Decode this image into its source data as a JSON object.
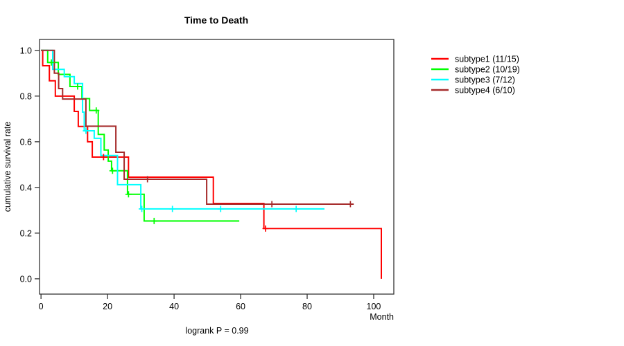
{
  "chart_data": {
    "type": "line",
    "subtype_kind": "kaplan-meier-step",
    "title": "Time to Death",
    "xlabel": "Month",
    "ylabel": "cumulative survival rate",
    "annotation": "logrank P = 0.99",
    "grid": false,
    "legend_position": "right-outside",
    "xlim": [
      -0.45,
      106.05
    ],
    "ylim": [
      -0.067,
      1.048
    ],
    "x_ticks": [
      0,
      20,
      40,
      60,
      80,
      100
    ],
    "y_ticks": [
      {
        "value": 0.0,
        "label": "0.0"
      },
      {
        "value": 0.2,
        "label": "0.2"
      },
      {
        "value": 0.4,
        "label": "0.4"
      },
      {
        "value": 0.6,
        "label": "0.6"
      },
      {
        "value": 0.8,
        "label": "0.8"
      },
      {
        "value": 1.0,
        "label": "1.0"
      }
    ],
    "axis_color": "#333333",
    "series": [
      {
        "name": "subtype1 (11/15)",
        "color": "#FF0000",
        "end_month": 102.3,
        "drops_to_zero_at_end": true,
        "points": [
          [
            0,
            1.0
          ],
          [
            0.5,
            0.933
          ],
          [
            2.5,
            0.867
          ],
          [
            4.3,
            0.8
          ],
          [
            10,
            0.733
          ],
          [
            11.2,
            0.667
          ],
          [
            14,
            0.6
          ],
          [
            15.4,
            0.533
          ],
          [
            26.3,
            0.445
          ],
          [
            51.8,
            0.33
          ],
          [
            67,
            0.22
          ],
          [
            102.3,
            0.0
          ]
        ],
        "censor_marks": [
          [
            18.8,
            0.533
          ],
          [
            67.5,
            0.22
          ]
        ]
      },
      {
        "name": "subtype2 (10/19)",
        "color": "#00FF00",
        "end_month": 59.6,
        "drops_to_zero_at_end": false,
        "points": [
          [
            0,
            1.0
          ],
          [
            2,
            0.947
          ],
          [
            5.2,
            0.895
          ],
          [
            8.7,
            0.842
          ],
          [
            12.3,
            0.789
          ],
          [
            14.6,
            0.737
          ],
          [
            17.2,
            0.632
          ],
          [
            19,
            0.564
          ],
          [
            20.2,
            0.515
          ],
          [
            21.2,
            0.473
          ],
          [
            26,
            0.37
          ],
          [
            31,
            0.253
          ]
        ],
        "censor_marks": [
          [
            3.1,
            0.947
          ],
          [
            11,
            0.842
          ],
          [
            16.6,
            0.737
          ],
          [
            21.5,
            0.473
          ],
          [
            26.3,
            0.37
          ],
          [
            34,
            0.253
          ]
        ]
      },
      {
        "name": "subtype3 (7/12)",
        "color": "#00FFFF",
        "end_month": 85.2,
        "drops_to_zero_at_end": false,
        "points": [
          [
            0,
            1.0
          ],
          [
            3.5,
            0.917
          ],
          [
            7,
            0.885
          ],
          [
            10,
            0.855
          ],
          [
            12.5,
            0.73
          ],
          [
            13,
            0.648
          ],
          [
            16,
            0.615
          ],
          [
            18,
            0.54
          ],
          [
            23,
            0.412
          ],
          [
            30,
            0.306
          ]
        ],
        "censor_marks": [
          [
            13.5,
            0.648
          ],
          [
            30.3,
            0.306
          ],
          [
            39.5,
            0.306
          ],
          [
            54,
            0.306
          ],
          [
            76.7,
            0.306
          ]
        ]
      },
      {
        "name": "subtype4 (6/10)",
        "color": "#A52A2A",
        "end_month": 94,
        "drops_to_zero_at_end": false,
        "points": [
          [
            0,
            1.0
          ],
          [
            4,
            0.9
          ],
          [
            5.3,
            0.833
          ],
          [
            6.5,
            0.787
          ],
          [
            13.5,
            0.668
          ],
          [
            22.5,
            0.554
          ],
          [
            25,
            0.436
          ],
          [
            49.8,
            0.327
          ]
        ],
        "censor_marks": [
          [
            32,
            0.436
          ],
          [
            69.4,
            0.327
          ],
          [
            93,
            0.327
          ]
        ]
      }
    ]
  }
}
